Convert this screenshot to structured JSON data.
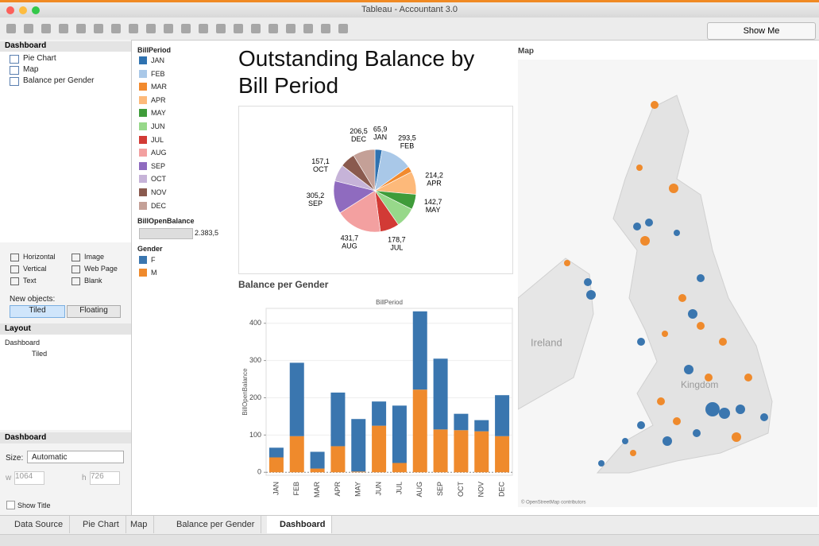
{
  "window": {
    "title": "Tableau - Accountant 3.0",
    "show_me": "Show Me"
  },
  "sidebar": {
    "dashboard_header": "Dashboard",
    "sheets": [
      "Pie Chart",
      "Map",
      "Balance per Gender"
    ],
    "objects": [
      "Horizontal",
      "Image",
      "Vertical",
      "Web Page",
      "Text",
      "Blank"
    ],
    "new_objects_label": "New objects:",
    "tiled": "Tiled",
    "floating": "Floating",
    "layout_header": "Layout",
    "layout_dashboard": "Dashboard",
    "layout_tiled": "Tiled",
    "size_header": "Dashboard",
    "size_label": "Size:",
    "size_value": "Automatic",
    "width_label": "w",
    "width": "1064",
    "height_label": "h",
    "height": "726",
    "show_title": "Show Title"
  },
  "legend": {
    "billperiod_title": "BillPeriod",
    "balance_title": "BillOpenBalance",
    "balance_max": "2.383,5",
    "gender_title": "Gender"
  },
  "dashboard_title": "Outstanding Balance by Bill Period",
  "map": {
    "title": "Map",
    "place": "Ireland",
    "place2": "Kingdom",
    "credit": "© OpenStreetMap contributors"
  },
  "tabs": [
    "Data Source",
    "Pie Chart",
    "Map",
    "Balance per Gender",
    "Dashboard"
  ],
  "chart_data": [
    {
      "type": "pie",
      "categories": [
        "JAN",
        "FEB",
        "MAR",
        "APR",
        "MAY",
        "JUN",
        "JUL",
        "AUG",
        "SEP",
        "OCT",
        "NOV",
        "DEC"
      ],
      "values": [
        65.9,
        293.5,
        55,
        214.2,
        142.7,
        190,
        178.7,
        431.7,
        305.2,
        157.1,
        140,
        206.5
      ],
      "value_labels": [
        "65,9",
        "293,5",
        null,
        "214,2",
        "142,7",
        null,
        "178,7",
        "431,7",
        "305,2",
        "157,1",
        null,
        "206,5"
      ],
      "colors": [
        "#2f72b0",
        "#a9c8e8",
        "#f28a2e",
        "#fdb97a",
        "#3f9c3a",
        "#97d88a",
        "#d23a35",
        "#f3a0a0",
        "#8f6bbf",
        "#c6b3d8",
        "#8a5a4e",
        "#c4a097"
      ]
    },
    {
      "type": "bar",
      "title": "Balance per Gender",
      "x_label": "BillPeriod",
      "y_label": "BillOpenBalance",
      "stacked": true,
      "categories": [
        "JAN",
        "FEB",
        "MAR",
        "APR",
        "MAY",
        "JUN",
        "JUL",
        "AUG",
        "SEP",
        "OCT",
        "NOV",
        "DEC"
      ],
      "series": [
        {
          "name": "F",
          "color": "#3a76af",
          "values": [
            26,
            197,
            45,
            144,
            141,
            65,
            154,
            210,
            190,
            44,
            30,
            110
          ]
        },
        {
          "name": "M",
          "color": "#ef8a2c",
          "values": [
            40,
            97,
            10,
            70,
            2,
            125,
            25,
            222,
            115,
            113,
            110,
            97
          ]
        }
      ],
      "ylim": [
        -8,
        440
      ],
      "yticks": [
        0,
        100,
        200,
        300,
        400
      ],
      "grid": true
    }
  ]
}
